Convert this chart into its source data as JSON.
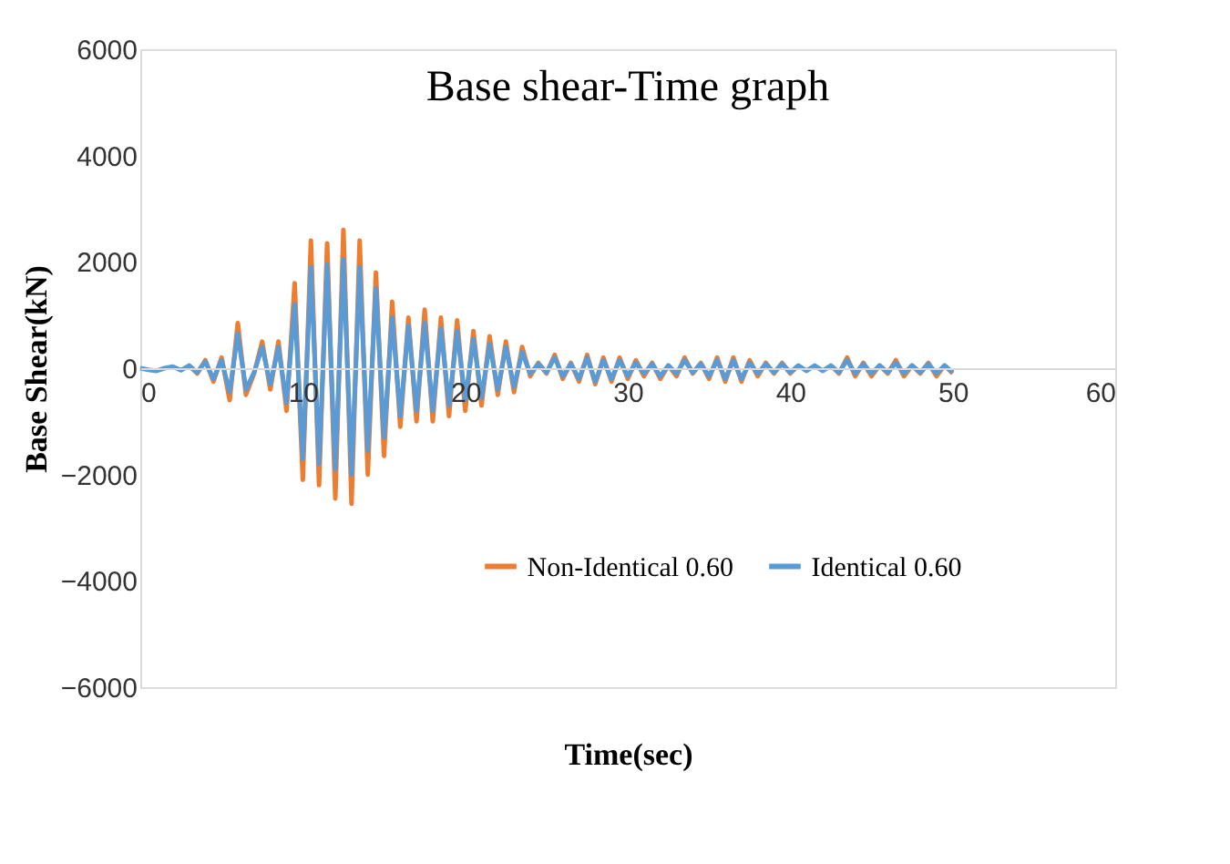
{
  "chart_data": {
    "type": "line",
    "title": "Base shear-Time  graph",
    "xlabel": "Time(sec)",
    "ylabel": "Base Shear(kN)",
    "x": [
      0,
      0.5,
      1,
      1.5,
      2,
      2.5,
      3,
      3.5,
      4,
      4.5,
      5,
      5.5,
      6,
      6.5,
      7,
      7.5,
      8,
      8.5,
      9,
      9.5,
      10,
      10.5,
      11,
      11.5,
      12,
      12.5,
      13,
      13.5,
      14,
      14.5,
      15,
      15.5,
      16,
      16.5,
      17,
      17.5,
      18,
      18.5,
      19,
      19.5,
      20,
      20.5,
      21,
      21.5,
      22,
      22.5,
      23,
      23.5,
      24,
      24.5,
      25,
      25.5,
      26,
      26.5,
      27,
      27.5,
      28,
      28.5,
      29,
      29.5,
      30,
      30.5,
      31,
      31.5,
      32,
      32.5,
      33,
      33.5,
      34,
      34.5,
      35,
      35.5,
      36,
      36.5,
      37,
      37.5,
      38,
      38.5,
      39,
      39.5,
      40,
      40.5,
      41,
      41.5,
      42,
      42.5,
      43,
      43.5,
      44,
      44.5,
      45,
      45.5,
      46,
      46.5,
      47,
      47.5,
      48,
      48.5,
      49,
      49.5,
      50
    ],
    "series": [
      {
        "name": "Non-Identical 0.60",
        "color": "#ed7d31",
        "values": [
          null,
          null,
          null,
          null,
          null,
          null,
          50,
          -100,
          150,
          -250,
          200,
          -600,
          850,
          -500,
          -100,
          500,
          -400,
          500,
          -800,
          1600,
          -2100,
          2400,
          -2200,
          2350,
          -2450,
          2600,
          -2550,
          2400,
          -2000,
          1800,
          -1650,
          1250,
          -1100,
          950,
          -1000,
          1100,
          -1000,
          950,
          -900,
          900,
          -800,
          700,
          -700,
          600,
          -500,
          500,
          -450,
          400,
          -150,
          100,
          -100,
          250,
          -200,
          100,
          -250,
          250,
          -300,
          200,
          -250,
          200,
          -200,
          150,
          -150,
          100,
          -200,
          50,
          -150,
          200,
          -100,
          100,
          -200,
          200,
          -250,
          200,
          -250,
          150,
          -150,
          100,
          -100,
          100,
          -100,
          50,
          null,
          null,
          null,
          50,
          -100,
          200,
          -150,
          100,
          -150,
          50,
          -100,
          150,
          -150,
          50,
          -100,
          100,
          -150,
          50,
          -100
        ]
      },
      {
        "name": "Identical 0.60",
        "color": "#5b9bd5",
        "values": [
          0,
          -30,
          -50,
          0,
          30,
          -40,
          50,
          -80,
          120,
          -200,
          150,
          -450,
          650,
          -400,
          -80,
          400,
          -300,
          400,
          -650,
          1200,
          -1700,
          1900,
          -1800,
          1950,
          -1900,
          2050,
          -2000,
          1900,
          -1550,
          1500,
          -1300,
          950,
          -900,
          800,
          -800,
          850,
          -800,
          750,
          -700,
          700,
          -600,
          550,
          -550,
          450,
          -400,
          400,
          -350,
          300,
          -100,
          80,
          -80,
          200,
          -150,
          80,
          -200,
          200,
          -250,
          150,
          -200,
          150,
          -150,
          100,
          -100,
          80,
          -150,
          50,
          -100,
          150,
          -80,
          80,
          -150,
          150,
          -200,
          150,
          -200,
          100,
          -100,
          80,
          -80,
          80,
          -80,
          50,
          -50,
          50,
          -50,
          50,
          -80,
          150,
          -100,
          80,
          -100,
          50,
          -80,
          100,
          -100,
          50,
          -80,
          80,
          -100,
          50,
          -80
        ]
      }
    ],
    "xlim": [
      0,
      60
    ],
    "xticks": [
      0,
      10,
      20,
      30,
      40,
      50,
      60
    ],
    "ylim": [
      -6000,
      6000
    ],
    "yticks": [
      -6000,
      -4000,
      -2000,
      0,
      2000,
      4000,
      6000
    ],
    "grid": false,
    "legend": "bottom right",
    "marker": "none",
    "line_style": "solid"
  }
}
